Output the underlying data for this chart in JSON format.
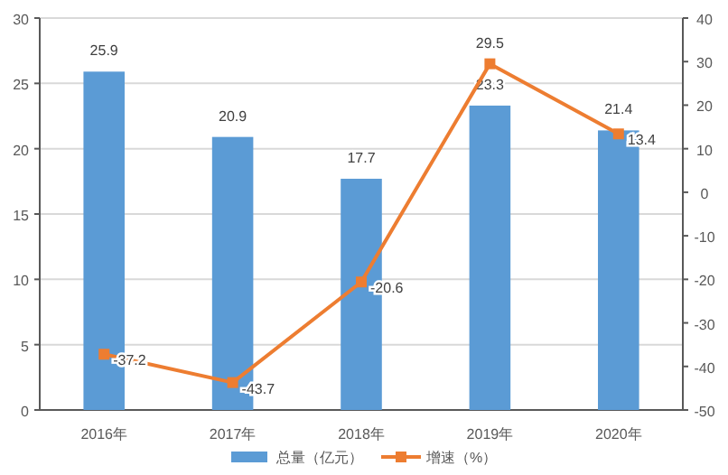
{
  "chart_data": {
    "type": "bar",
    "categories": [
      "2016年",
      "2017年",
      "2018年",
      "2019年",
      "2020年"
    ],
    "series": [
      {
        "name": "总量（亿元）",
        "color": "#5b9bd5",
        "values": [
          25.9,
          20.9,
          17.7,
          23.3,
          21.4
        ]
      },
      {
        "name": "增速（%）",
        "type": "line",
        "axis": "y2",
        "color": "#ed7d31",
        "values": [
          -37.2,
          -43.7,
          -20.6,
          29.5,
          13.4
        ]
      }
    ],
    "ylim": [
      0,
      30
    ],
    "yticks": [
      0,
      5,
      10,
      15,
      20,
      25,
      30
    ],
    "y2lim": [
      -50,
      40
    ],
    "y2ticks": [
      -50,
      -40,
      -30,
      -20,
      -10,
      0,
      10,
      20,
      30,
      40
    ],
    "grid": "y",
    "legend": "bottom",
    "marker": "square",
    "line_style": "solid",
    "data_labels": true
  }
}
